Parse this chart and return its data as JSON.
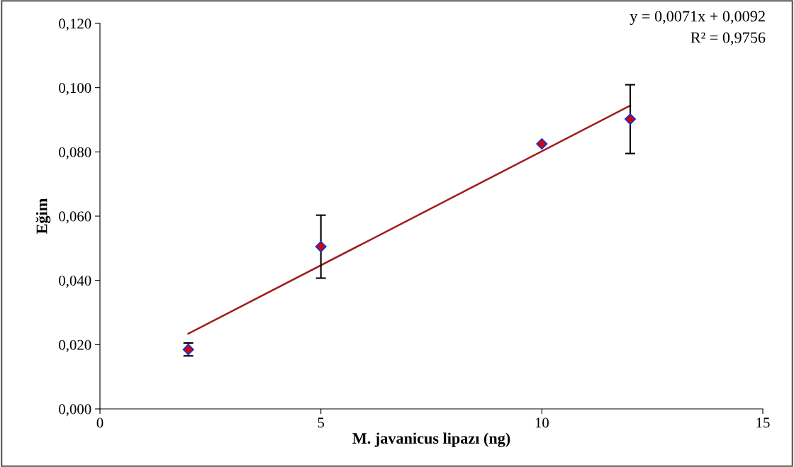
{
  "chart_data": {
    "type": "scatter",
    "xlabel": "M. javanicus lipazı (ng)",
    "ylabel": "Eğim",
    "xlim": [
      0,
      15
    ],
    "xticks": [
      0,
      5,
      10,
      15
    ],
    "ylim": [
      0,
      0.12
    ],
    "yticks": [
      {
        "value": 0,
        "label": "0,000"
      },
      {
        "value": 0.02,
        "label": "0,020"
      },
      {
        "value": 0.04,
        "label": "0,040"
      },
      {
        "value": 0.06,
        "label": "0,060"
      },
      {
        "value": 0.08,
        "label": "0,080"
      },
      {
        "value": 0.1,
        "label": "0,100"
      },
      {
        "value": 0.12,
        "label": "0,120"
      }
    ],
    "grid": false,
    "series": [
      {
        "marker": "diamond",
        "color": "#e00000",
        "x": [
          2,
          5,
          10,
          12
        ],
        "values": [
          0.0185,
          0.0505,
          0.0825,
          0.0902
        ],
        "errors": [
          0.002,
          0.0098,
          null,
          0.0107
        ]
      },
      {
        "type": "line",
        "marker": "none",
        "color": "#a01c1c",
        "x": [
          2,
          12
        ],
        "values": [
          0.0234,
          0.0944
        ]
      }
    ],
    "annotations": [
      "y = 0,0071x + 0,0092",
      "R² = 0,9756"
    ]
  }
}
